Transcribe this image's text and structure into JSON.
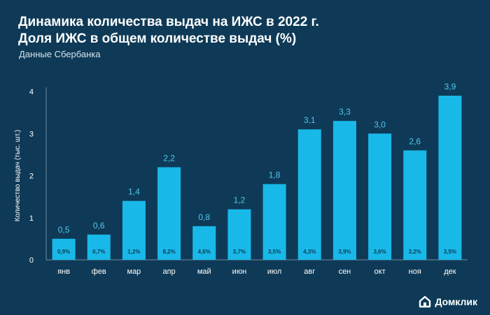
{
  "header": {
    "title_line1": "Динамика количества выдач на ИЖС в 2022 г.",
    "title_line2": "Доля ИЖС в общем количестве выдач (%)",
    "subtitle": "Данные Сбербанка"
  },
  "brand": {
    "name": "Домклик",
    "icon": "house-logo-icon"
  },
  "colors": {
    "background": "#0e3a57",
    "bar": "#18b9e8",
    "value_label": "#4fc8f0",
    "axis_text": "#ffffff",
    "axis_line": "#6f8aa0"
  },
  "chart_data": {
    "type": "bar",
    "ylabel": "Количество выдач (тыс. шт.)",
    "xlabel": "",
    "ylim": [
      0,
      4
    ],
    "yticks": [
      0,
      1,
      2,
      3,
      4
    ],
    "grid": false,
    "categories": [
      "янв",
      "фев",
      "мар",
      "апр",
      "май",
      "июн",
      "июл",
      "авг",
      "сен",
      "окт",
      "ноя",
      "дек"
    ],
    "values": [
      0.5,
      0.6,
      1.4,
      2.2,
      0.8,
      1.2,
      1.8,
      3.1,
      3.3,
      3.0,
      2.6,
      3.9
    ],
    "value_labels": [
      "0,5",
      "0,6",
      "1,4",
      "2,2",
      "0,8",
      "1,2",
      "1,8",
      "3,1",
      "3,3",
      "3,0",
      "2,6",
      "3,9"
    ],
    "share_labels": [
      "0,9%",
      "0,7%",
      "1,2%",
      "8,2%",
      "4,6%",
      "3,7%",
      "3,5%",
      "4,3%",
      "3,9%",
      "3,6%",
      "3,2%",
      "3,5%"
    ]
  }
}
